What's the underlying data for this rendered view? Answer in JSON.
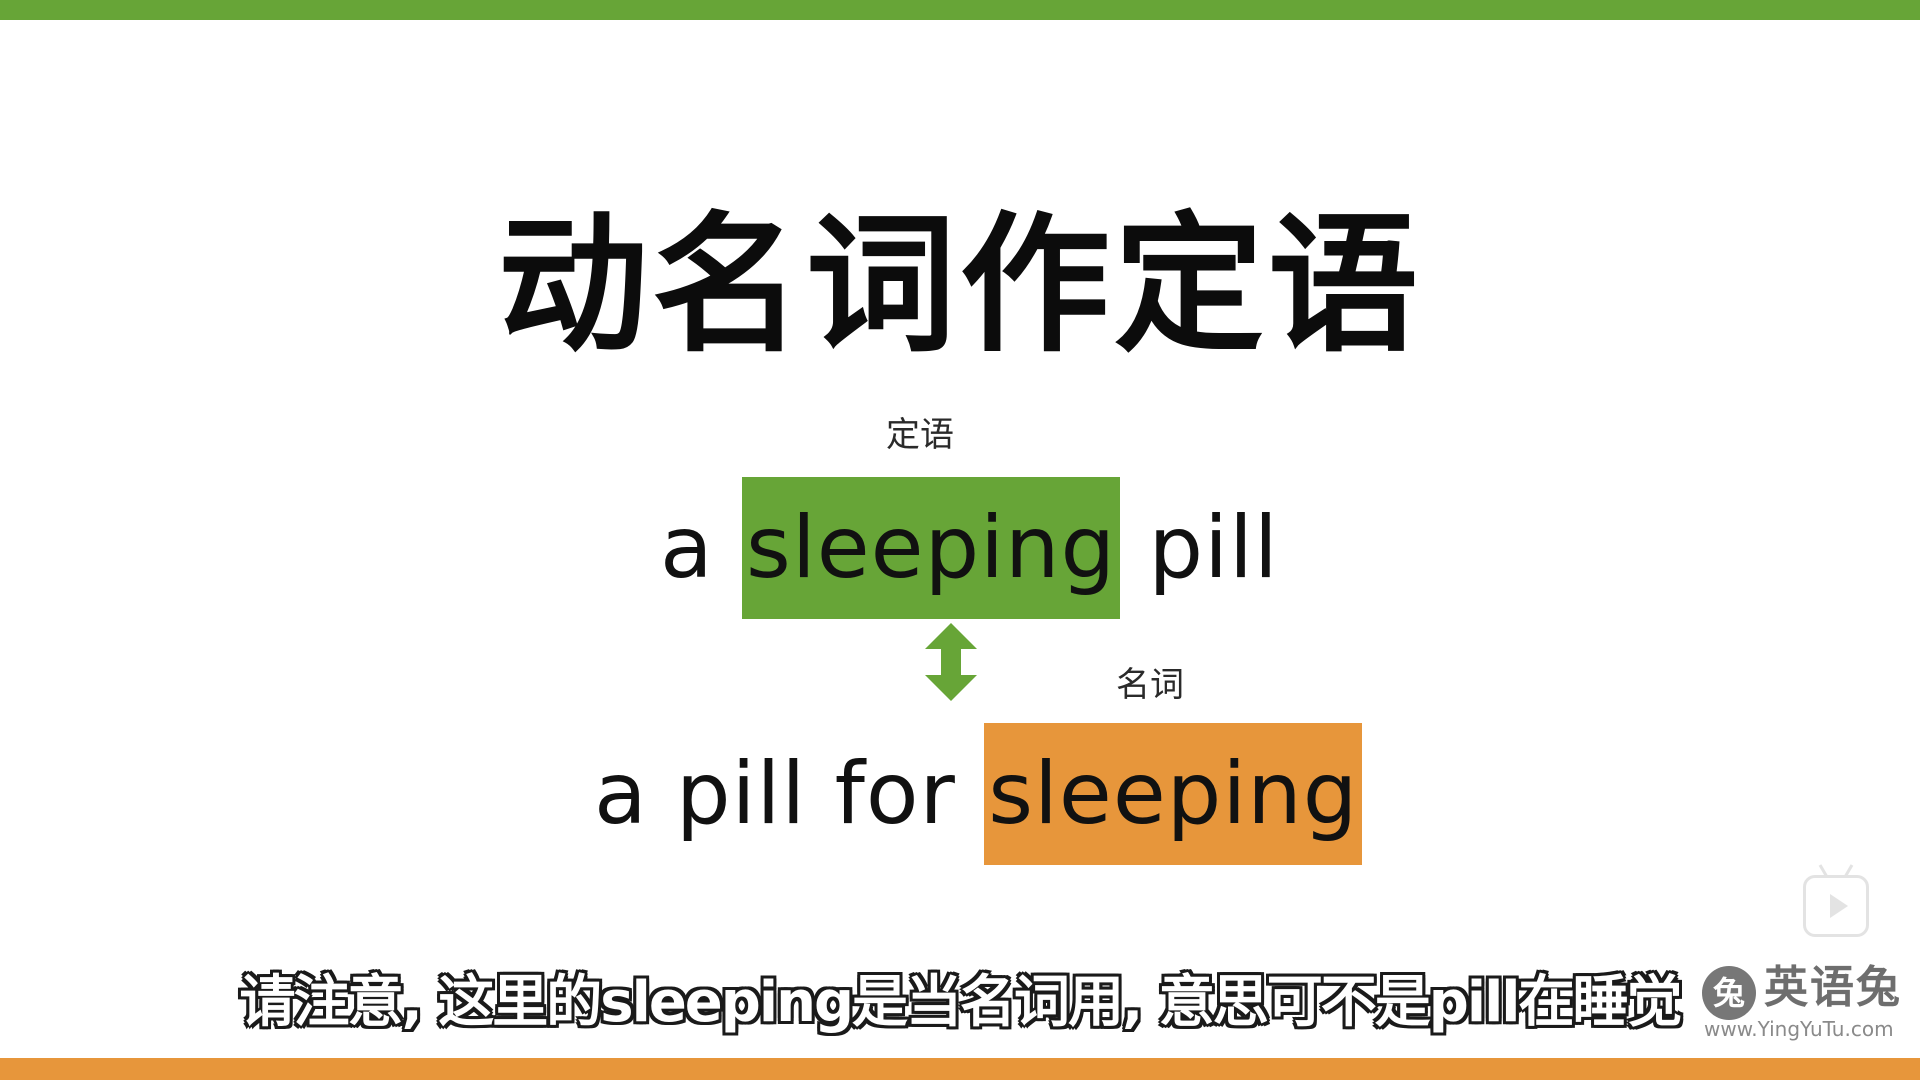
{
  "colors": {
    "green": "#67a537",
    "orange": "#e7963b",
    "text": "#111111"
  },
  "slide": {
    "title": "动名词作定语",
    "phrase1": {
      "tag": "定语",
      "before": "a ",
      "highlight": "sleeping",
      "after": " pill"
    },
    "arrow_icon": "double-vertical-arrow-icon",
    "phrase2": {
      "tag": "名词",
      "before": "a pill for ",
      "highlight": "sleeping"
    }
  },
  "subtitle": "请注意, 这里的sleeping是当名词用, 意思可不是pill在睡觉",
  "player": {
    "play_icon": "bilibili-play-icon"
  },
  "watermark": {
    "logo_glyph": "兔",
    "name": "英语兔",
    "url": "www.YingYuTu.com"
  }
}
